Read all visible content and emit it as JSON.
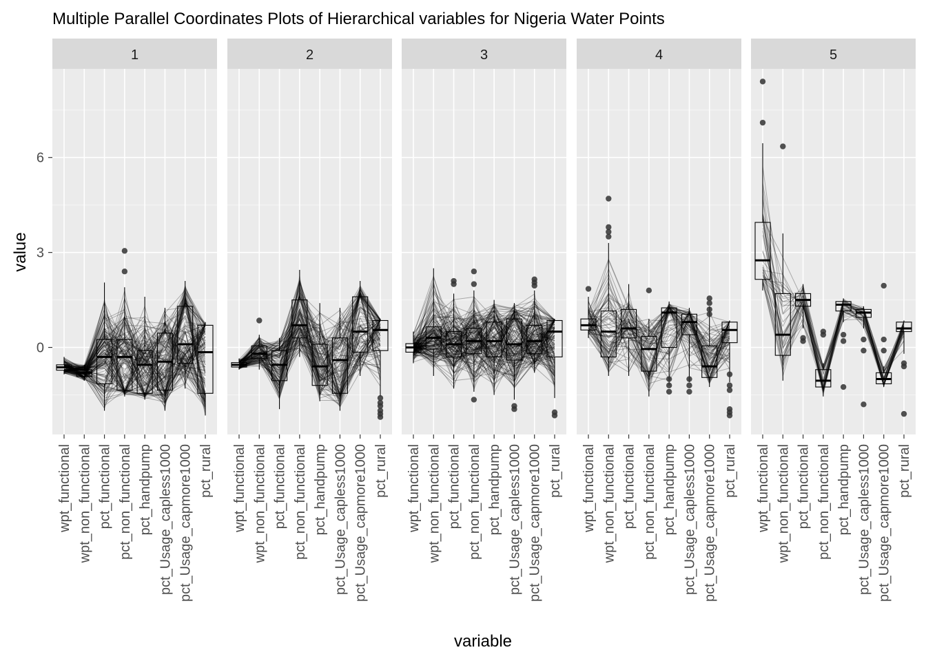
{
  "chart_data": {
    "type": "parallel-coordinates-boxplot",
    "title": "Multiple Parallel Coordinates Plots of Hierarchical variables for Nigeria Water Points",
    "xlabel": "variable",
    "ylabel": "value",
    "ylim": [
      -2.75,
      8.8
    ],
    "yticks": [
      0,
      3,
      6
    ],
    "variables": [
      "wpt_functional",
      "wpt_non_functional",
      "pct_functional",
      "pct_non_functional",
      "pct_handpump",
      "pct_Usage_capless1000",
      "pct_Usage_capmore1000",
      "pct_rural"
    ],
    "grid": "on",
    "legend": "none",
    "colors": {
      "panel_bg": "#ebebeb",
      "strip_bg": "#d9d9d9",
      "grid_major": "#ffffff",
      "grid_minor": "#f5f5f5",
      "line": "#000000",
      "outlier": "#333333"
    },
    "panels": [
      {
        "label": "1",
        "n_lines": 150,
        "box": [
          {
            "min": -0.85,
            "q1": -0.72,
            "median": -0.63,
            "q3": -0.55,
            "max": -0.3
          },
          {
            "min": -1.05,
            "q1": -0.92,
            "median": -0.8,
            "q3": -0.7,
            "max": -0.55
          },
          {
            "min": -2.0,
            "q1": -1.15,
            "median": -0.3,
            "q3": 0.25,
            "max": 2.05
          },
          {
            "min": -1.55,
            "q1": -1.35,
            "median": -0.3,
            "q3": 0.25,
            "max": 1.9
          },
          {
            "min": -1.65,
            "q1": -1.45,
            "median": -0.55,
            "q3": -0.1,
            "max": 1.6
          },
          {
            "min": -2.0,
            "q1": -1.35,
            "median": -0.45,
            "q3": 0.45,
            "max": 1.25
          },
          {
            "min": -1.3,
            "q1": -0.5,
            "median": 0.1,
            "q3": 1.3,
            "max": 2.1
          },
          {
            "min": -2.15,
            "q1": -1.45,
            "median": -0.15,
            "q3": 0.7,
            "max": 0.8
          }
        ],
        "outliers": [
          {
            "var": 3,
            "values": [
              3.05,
              2.4
            ]
          }
        ]
      },
      {
        "label": "2",
        "n_lines": 120,
        "box": [
          {
            "min": -0.7,
            "q1": -0.62,
            "median": -0.55,
            "q3": -0.48,
            "max": -0.35
          },
          {
            "min": -0.7,
            "q1": -0.35,
            "median": -0.2,
            "q3": 0.05,
            "max": 0.4
          },
          {
            "min": -1.95,
            "q1": -1.05,
            "median": -0.55,
            "q3": -0.1,
            "max": 0.3
          },
          {
            "min": -0.3,
            "q1": 0.3,
            "median": 0.7,
            "q3": 1.5,
            "max": 2.45
          },
          {
            "min": -1.7,
            "q1": -1.2,
            "median": -0.6,
            "q3": 0.1,
            "max": 1.4
          },
          {
            "min": -2.0,
            "q1": -1.45,
            "median": -0.4,
            "q3": 0.3,
            "max": 1.25
          },
          {
            "min": -0.9,
            "q1": -0.15,
            "median": 0.5,
            "q3": 1.6,
            "max": 2.1
          },
          {
            "min": -1.55,
            "q1": -0.1,
            "median": 0.55,
            "q3": 0.85,
            "max": 0.9
          }
        ],
        "outliers": [
          {
            "var": 1,
            "values": [
              0.85
            ]
          },
          {
            "var": 7,
            "values": [
              -1.6,
              -1.75,
              -1.85,
              -2.0,
              -2.1,
              -2.2
            ]
          }
        ]
      },
      {
        "label": "3",
        "n_lines": 170,
        "box": [
          {
            "min": -0.5,
            "q1": -0.15,
            "median": 0.0,
            "q3": 0.12,
            "max": 0.5
          },
          {
            "min": -0.9,
            "q1": -0.05,
            "median": 0.3,
            "q3": 0.65,
            "max": 2.5
          },
          {
            "min": -1.3,
            "q1": -0.3,
            "median": 0.1,
            "q3": 0.5,
            "max": 1.7
          },
          {
            "min": -1.4,
            "q1": -0.2,
            "median": 0.2,
            "q3": 0.6,
            "max": 1.8
          },
          {
            "min": -1.5,
            "q1": -0.3,
            "median": 0.2,
            "q3": 0.8,
            "max": 1.5
          },
          {
            "min": -1.65,
            "q1": -0.4,
            "median": 0.1,
            "q3": 0.9,
            "max": 1.4
          },
          {
            "min": -0.8,
            "q1": -0.2,
            "median": 0.2,
            "q3": 0.7,
            "max": 1.8
          },
          {
            "min": -1.6,
            "q1": -0.3,
            "median": 0.5,
            "q3": 0.85,
            "max": 0.9
          }
        ],
        "outliers": [
          {
            "var": 2,
            "values": [
              2.1,
              2.0
            ]
          },
          {
            "var": 3,
            "values": [
              2.4,
              2.0,
              -1.65
            ]
          },
          {
            "var": 5,
            "values": [
              -1.85,
              -1.95
            ]
          },
          {
            "var": 6,
            "values": [
              2.15,
              2.05,
              1.95
            ]
          },
          {
            "var": 7,
            "values": [
              -2.05,
              -2.15
            ]
          }
        ]
      },
      {
        "label": "4",
        "n_lines": 80,
        "box": [
          {
            "min": 0.3,
            "q1": 0.55,
            "median": 0.7,
            "q3": 0.9,
            "max": 1.6
          },
          {
            "min": -0.9,
            "q1": -0.3,
            "median": 0.5,
            "q3": 1.15,
            "max": 3.3
          },
          {
            "min": -0.9,
            "q1": 0.3,
            "median": 0.6,
            "q3": 1.2,
            "max": 2.0
          },
          {
            "min": -1.55,
            "q1": -0.75,
            "median": -0.05,
            "q3": 0.35,
            "max": 0.9
          },
          {
            "min": -1.2,
            "q1": 0.0,
            "median": 1.1,
            "q3": 1.25,
            "max": 1.45
          },
          {
            "min": -1.1,
            "q1": 0.4,
            "median": 0.8,
            "q3": 1.05,
            "max": 1.25
          },
          {
            "min": -1.25,
            "q1": -0.95,
            "median": -0.6,
            "q3": 0.05,
            "max": 1.3
          },
          {
            "min": -1.1,
            "q1": 0.15,
            "median": 0.55,
            "q3": 0.8,
            "max": 0.85
          }
        ],
        "outliers": [
          {
            "var": 0,
            "values": [
              1.85
            ]
          },
          {
            "var": 1,
            "values": [
              4.7,
              3.8,
              3.65,
              3.5
            ]
          },
          {
            "var": 3,
            "values": [
              1.8
            ]
          },
          {
            "var": 4,
            "values": [
              -1.0,
              -1.2,
              -1.4
            ]
          },
          {
            "var": 5,
            "values": [
              -1.0,
              -1.2,
              -1.4
            ]
          },
          {
            "var": 6,
            "values": [
              1.55,
              1.4,
              1.2,
              1.05
            ]
          },
          {
            "var": 7,
            "values": [
              -0.85,
              -1.2,
              -1.35,
              -1.95,
              -2.05,
              -2.15
            ]
          }
        ]
      },
      {
        "label": "5",
        "n_lines": 40,
        "box": [
          {
            "min": 1.8,
            "q1": 2.15,
            "median": 2.75,
            "q3": 3.95,
            "max": 6.45
          },
          {
            "min": -1.05,
            "q1": -0.25,
            "median": 0.4,
            "q3": 1.7,
            "max": 3.6
          },
          {
            "min": 0.6,
            "q1": 1.3,
            "median": 1.5,
            "q3": 1.7,
            "max": 2.0
          },
          {
            "min": -1.55,
            "q1": -1.25,
            "median": -1.05,
            "q3": -0.7,
            "max": -0.5
          },
          {
            "min": 0.8,
            "q1": 1.15,
            "median": 1.35,
            "q3": 1.45,
            "max": 1.55
          },
          {
            "min": 0.6,
            "q1": 0.95,
            "median": 1.1,
            "q3": 1.2,
            "max": 1.3
          },
          {
            "min": -1.25,
            "q1": -1.15,
            "median": -1.0,
            "q3": -0.8,
            "max": -0.6
          },
          {
            "min": -0.2,
            "q1": 0.5,
            "median": 0.6,
            "q3": 0.8,
            "max": 0.85
          }
        ],
        "outliers": [
          {
            "var": 0,
            "values": [
              8.4,
              7.1
            ]
          },
          {
            "var": 1,
            "values": [
              6.35
            ]
          },
          {
            "var": 2,
            "values": [
              0.2,
              0.3
            ]
          },
          {
            "var": 3,
            "values": [
              0.5,
              0.4
            ]
          },
          {
            "var": 4,
            "values": [
              -1.25,
              0.2,
              0.4
            ]
          },
          {
            "var": 5,
            "values": [
              -1.8,
              -0.1,
              0.25
            ]
          },
          {
            "var": 6,
            "values": [
              1.95,
              0.25,
              -0.1
            ]
          },
          {
            "var": 7,
            "values": [
              -2.1,
              -0.5,
              -0.6
            ]
          }
        ]
      }
    ]
  }
}
